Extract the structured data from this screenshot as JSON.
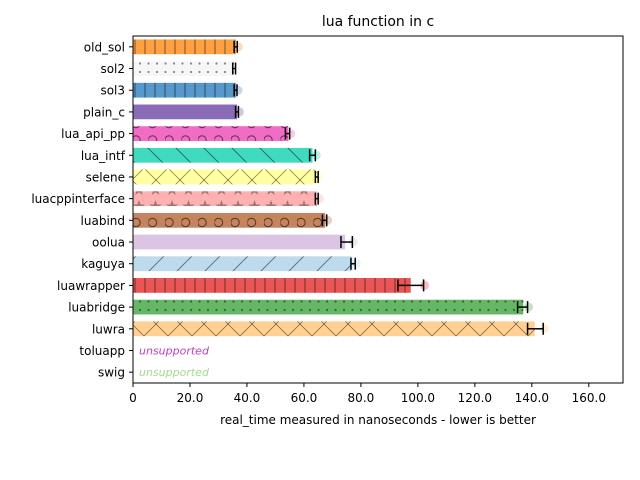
{
  "chart_data": {
    "type": "bar",
    "orientation": "horizontal",
    "title": "lua function in c",
    "xlabel": "real_time measured in nanoseconds - lower is better",
    "ylabel": "",
    "xlim": [
      0,
      172
    ],
    "xticks": [
      0,
      20,
      40,
      60,
      80,
      100,
      120,
      140,
      160
    ],
    "xtick_labels": [
      "0",
      "20.0",
      "40.0",
      "60.0",
      "80.0",
      "100.0",
      "120.0",
      "140.0",
      "160.0"
    ],
    "grid": false,
    "legend": "none",
    "unsupported_label": "unsupported",
    "bars": [
      {
        "category": "old_sol",
        "value": 36.0,
        "err_lo": 35.5,
        "err_hi": 36.6,
        "color": "#ff9933",
        "hatch": "vline"
      },
      {
        "category": "sol2",
        "value": 35.5,
        "err_lo": 35.0,
        "err_hi": 36.0,
        "color": "#f5f5f5",
        "hatch": "dots"
      },
      {
        "category": "sol3",
        "value": 36.0,
        "err_lo": 35.5,
        "err_hi": 36.5,
        "color": "#4a90c8",
        "hatch": "vline"
      },
      {
        "category": "plain_c",
        "value": 36.5,
        "err_lo": 36.0,
        "err_hi": 37.0,
        "color": "#8060b0",
        "hatch": "none"
      },
      {
        "category": "lua_api_pp",
        "value": 54.5,
        "err_lo": 53.5,
        "err_hi": 55.0,
        "color": "#f060c0",
        "hatch": "circles"
      },
      {
        "category": "lua_intf",
        "value": 63.0,
        "err_lo": 62.0,
        "err_hi": 64.0,
        "color": "#30d8b8",
        "hatch": "backslash"
      },
      {
        "category": "selene",
        "value": 64.5,
        "err_lo": 64.0,
        "err_hi": 65.0,
        "color": "#ffff99",
        "hatch": "cross"
      },
      {
        "category": "luacppinterface",
        "value": 64.5,
        "err_lo": 64.0,
        "err_hi": 65.0,
        "color": "#ffaaaa",
        "hatch": "stars"
      },
      {
        "category": "luabind",
        "value": 67.5,
        "err_lo": 66.5,
        "err_hi": 68.0,
        "color": "#c07850",
        "hatch": "circles"
      },
      {
        "category": "oolua",
        "value": 74.5,
        "err_lo": 73.0,
        "err_hi": 77.0,
        "color": "#d8c0e0",
        "hatch": "none"
      },
      {
        "category": "kaguya",
        "value": 77.0,
        "err_lo": 76.5,
        "err_hi": 78.0,
        "color": "#b8d8ec",
        "hatch": "slash"
      },
      {
        "category": "luawrapper",
        "value": 97.5,
        "err_lo": 93.0,
        "err_hi": 102.0,
        "color": "#e84848",
        "hatch": "vline"
      },
      {
        "category": "luabridge",
        "value": 137.0,
        "err_lo": 135.0,
        "err_hi": 138.5,
        "color": "#58b058",
        "hatch": "dots"
      },
      {
        "category": "luwra",
        "value": 141.0,
        "err_lo": 138.5,
        "err_hi": 144.0,
        "color": "#ffcc88",
        "hatch": "cross"
      },
      {
        "category": "toluapp",
        "value": null,
        "color": "#c040c0",
        "hatch": "none"
      },
      {
        "category": "swig",
        "value": null,
        "color": "#a8d890",
        "hatch": "none"
      }
    ]
  }
}
